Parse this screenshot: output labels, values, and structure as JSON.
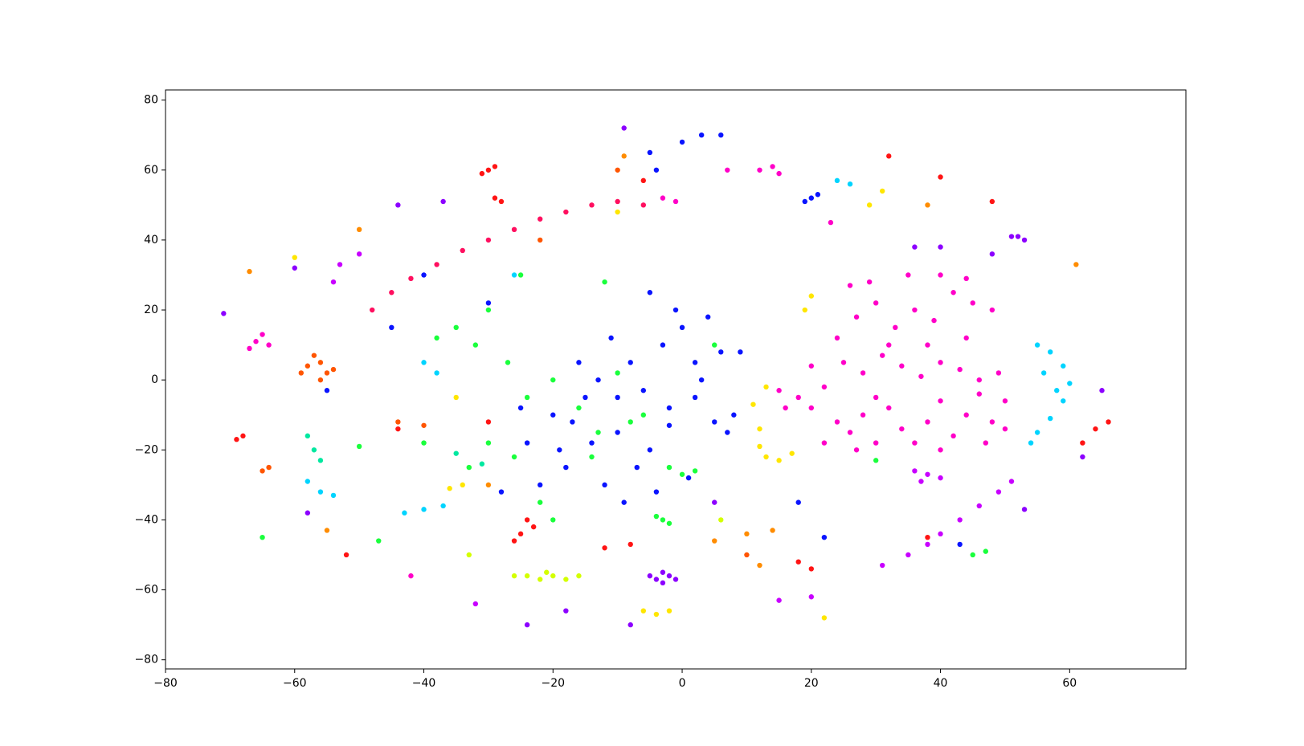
{
  "chart_data": {
    "type": "scatter",
    "xlim": [
      -80,
      78
    ],
    "ylim": [
      -82.6,
      82.9
    ],
    "xticks": [
      {
        "value": -80,
        "label": "−80"
      },
      {
        "value": -60,
        "label": "−60"
      },
      {
        "value": -40,
        "label": "−40"
      },
      {
        "value": -20,
        "label": "−20"
      },
      0,
      20,
      40,
      60
    ],
    "yticks": [
      {
        "value": -80,
        "label": "−80"
      },
      {
        "value": -60,
        "label": "−60"
      },
      {
        "value": -40,
        "label": "−40"
      },
      {
        "value": -20,
        "label": "−20"
      },
      0,
      20,
      40,
      60,
      80
    ],
    "series": [
      {
        "color": "#ff00c8",
        "x": [
          18,
          20,
          22,
          24,
          26,
          28,
          30,
          32,
          34,
          36,
          38,
          40,
          42,
          44,
          46,
          48,
          50,
          25,
          28,
          31,
          34,
          37,
          40,
          43,
          46,
          49,
          22,
          27,
          16,
          24,
          27,
          30,
          33,
          36,
          39,
          42,
          45,
          48,
          29,
          35,
          40,
          44,
          26,
          32,
          38,
          44,
          20,
          15,
          30,
          40,
          47,
          50,
          -66,
          -67,
          -65,
          -64,
          12,
          14,
          15,
          7,
          -3,
          -1,
          23,
          -42
        ],
        "y": [
          -5,
          -8,
          -2,
          -12,
          -15,
          -10,
          -5,
          -8,
          -14,
          -18,
          -12,
          -6,
          -16,
          -10,
          -4,
          -12,
          -6,
          5,
          2,
          7,
          4,
          1,
          5,
          3,
          0,
          2,
          -18,
          -20,
          -8,
          12,
          18,
          22,
          15,
          20,
          17,
          25,
          22,
          20,
          28,
          30,
          30,
          29,
          27,
          10,
          10,
          12,
          4,
          -3,
          -18,
          -20,
          -18,
          -14,
          11,
          9,
          13,
          10,
          60,
          61,
          59,
          60,
          52,
          51,
          45,
          -56
        ]
      },
      {
        "color": "#ff0f5f",
        "x": [
          -48,
          -45,
          -42,
          -38,
          -34,
          -30,
          -26,
          -22,
          -18,
          -14,
          -10,
          -6
        ],
        "y": [
          20,
          25,
          29,
          33,
          37,
          40,
          43,
          46,
          48,
          50,
          51,
          50
        ]
      },
      {
        "color": "#0a14ff",
        "x": [
          -20,
          -18,
          -15,
          -12,
          -10,
          -8,
          -5,
          -3,
          0,
          2,
          4,
          6,
          8,
          5,
          -2,
          -6,
          -14,
          -16,
          -22,
          -25,
          -9,
          -4,
          -1,
          3,
          7,
          -11,
          -7,
          -17,
          -13,
          -2,
          1,
          -19,
          -24,
          -28,
          -5,
          2,
          -10,
          9,
          20,
          21,
          19,
          -4,
          0,
          3,
          6,
          -5,
          -40,
          -30,
          -55,
          -45,
          22,
          18,
          43
        ],
        "y": [
          -10,
          -25,
          -5,
          -30,
          -15,
          5,
          -20,
          10,
          15,
          -5,
          18,
          8,
          -10,
          -12,
          -8,
          -3,
          -18,
          5,
          -30,
          -8,
          -35,
          -32,
          20,
          0,
          -15,
          12,
          -25,
          -12,
          0,
          -13,
          -28,
          -20,
          -18,
          -32,
          25,
          5,
          -5,
          8,
          52,
          53,
          51,
          60,
          68,
          70,
          70,
          65,
          30,
          22,
          -3,
          15,
          -45,
          -35,
          -47
        ]
      },
      {
        "color": "#1aff3c",
        "x": [
          -38,
          -35,
          -32,
          -30,
          -27,
          -24,
          -20,
          -16,
          -13,
          -10,
          -6,
          -2,
          0,
          2,
          -3,
          -2,
          -4,
          -30,
          -26,
          -22,
          -33,
          -14,
          -8,
          5,
          -40,
          -50,
          -65,
          -47,
          30,
          -20,
          -12,
          -25,
          45,
          47
        ],
        "y": [
          12,
          15,
          10,
          20,
          5,
          -5,
          0,
          -8,
          -15,
          2,
          -10,
          -25,
          -27,
          -26,
          -40,
          -41,
          -39,
          -18,
          -22,
          -35,
          -25,
          -22,
          -12,
          10,
          -18,
          -19,
          -45,
          -46,
          -23,
          -40,
          28,
          30,
          -50,
          -49
        ]
      },
      {
        "color": "#ff1414",
        "x": [
          -30,
          -29,
          -31,
          -28,
          -29,
          -24,
          -25,
          -23,
          -26,
          -69,
          -68,
          40,
          48,
          -6,
          18,
          20,
          -30,
          -12,
          -8,
          32,
          64,
          62,
          66,
          -52,
          -44,
          38
        ],
        "y": [
          60,
          61,
          59,
          51,
          52,
          -40,
          -44,
          -42,
          -46,
          -17,
          -16,
          58,
          51,
          57,
          -52,
          -54,
          -12,
          -48,
          -47,
          64,
          -14,
          -18,
          -12,
          -50,
          -14,
          -45
        ]
      },
      {
        "color": "#ff5500",
        "x": [
          -58,
          -56,
          -55,
          -57,
          -54,
          -56,
          -59,
          -64,
          -65,
          -44,
          -40,
          -22,
          10,
          -10
        ],
        "y": [
          4,
          5,
          2,
          7,
          3,
          0,
          2,
          -25,
          -26,
          -12,
          -13,
          40,
          -50,
          60
        ]
      },
      {
        "color": "#ff8c00",
        "x": [
          -67,
          -50,
          -9,
          38,
          61,
          5,
          10,
          14,
          -55,
          12,
          -30
        ],
        "y": [
          31,
          43,
          64,
          50,
          33,
          -46,
          -44,
          -43,
          -43,
          -53,
          -30
        ]
      },
      {
        "color": "#8c00ff",
        "x": [
          -4,
          -3,
          -2,
          -5,
          -1,
          -3,
          52,
          53,
          51,
          -44,
          -37,
          -58,
          53,
          65,
          -18,
          -60,
          -24,
          -71,
          62,
          -8,
          5,
          -9,
          36,
          40,
          48
        ],
        "y": [
          -57,
          -58,
          -56,
          -56,
          -57,
          -55,
          41,
          40,
          41,
          50,
          51,
          -38,
          -37,
          -3,
          -66,
          32,
          -70,
          19,
          -22,
          -70,
          -35,
          72,
          38,
          38,
          36
        ]
      },
      {
        "color": "#c800ff",
        "x": [
          31,
          35,
          38,
          40,
          43,
          46,
          49,
          51,
          36,
          38,
          40,
          37,
          -50,
          -53,
          -54,
          15,
          20,
          -32
        ],
        "y": [
          -53,
          -50,
          -47,
          -44,
          -40,
          -36,
          -32,
          -29,
          -26,
          -27,
          -28,
          -29,
          36,
          33,
          28,
          -63,
          -62,
          -64
        ]
      },
      {
        "color": "#d4ff00",
        "x": [
          -24,
          -22,
          -20,
          -18,
          -21,
          -26,
          -16,
          -33,
          6
        ],
        "y": [
          -56,
          -57,
          -56,
          -57,
          -55,
          -56,
          -56,
          -50,
          -40
        ]
      },
      {
        "color": "#00d4ff",
        "x": [
          55,
          57,
          59,
          60,
          59,
          57,
          55,
          54,
          56,
          58,
          -40,
          -37,
          -43,
          -58,
          -56,
          -54,
          -40,
          -38,
          24,
          26,
          -26
        ],
        "y": [
          10,
          8,
          4,
          -1,
          -6,
          -11,
          -15,
          -18,
          2,
          -3,
          -37,
          -36,
          -38,
          -29,
          -32,
          -33,
          5,
          2,
          57,
          56,
          30
        ]
      },
      {
        "color": "#ffe600",
        "x": [
          12,
          12,
          13,
          15,
          17,
          -4,
          -2,
          -6,
          13,
          11,
          19,
          20,
          -60,
          -34,
          -36,
          -35,
          29,
          31,
          -10,
          22
        ],
        "y": [
          -14,
          -19,
          -22,
          -23,
          -21,
          -67,
          -66,
          -66,
          -2,
          -7,
          20,
          24,
          35,
          -30,
          -31,
          -5,
          50,
          54,
          48,
          -68
        ]
      },
      {
        "color": "#00e8a0",
        "x": [
          -57,
          -56,
          -58,
          -35,
          -31
        ],
        "y": [
          -20,
          -23,
          -16,
          -21,
          -24
        ]
      }
    ]
  }
}
